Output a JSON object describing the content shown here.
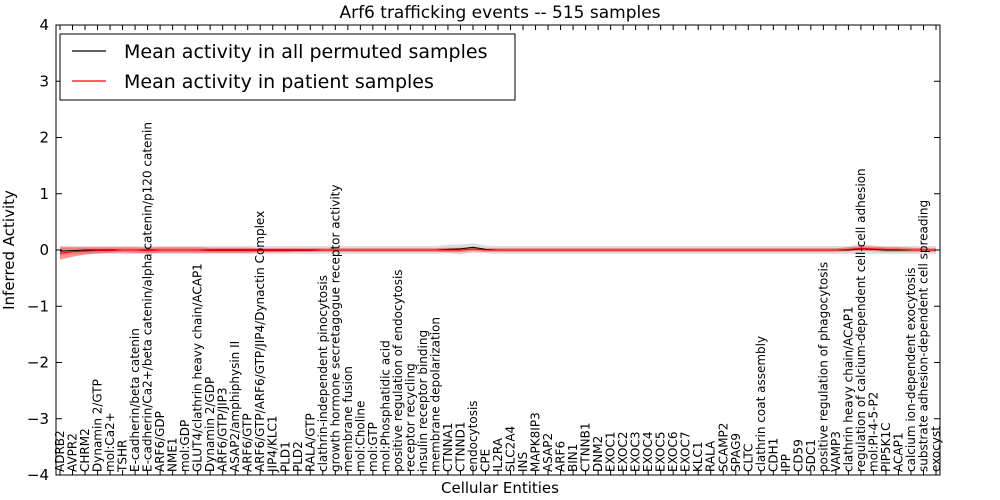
{
  "chart_data": {
    "type": "line",
    "title": "Arf6 trafficking events -- 515 samples",
    "xlabel": "Cellular Entities",
    "ylabel": "Inferred Activity",
    "ylim": [
      -4,
      4
    ],
    "yticks": [
      "4",
      "3",
      "2",
      "1",
      "0",
      "−1",
      "−2",
      "−3",
      "−4"
    ],
    "ytick_values": [
      4,
      3,
      2,
      1,
      0,
      -1,
      -2,
      -3,
      -4
    ],
    "legend": {
      "position": "top-left",
      "entries": [
        {
          "label": "Mean activity in all permuted samples",
          "color": "#000000"
        },
        {
          "label": "Mean activity in patient samples",
          "color": "#ff0000"
        }
      ]
    },
    "categories": [
      "ADRB2",
      "AVPR2",
      "CHRM2",
      "Dynamin 2/GTP",
      "mol:Ca2+",
      "TSHR",
      "E-cadherin/beta catenin",
      "E-cadherin/Ca2+/beta catenin/alpha catenin/p120 catenin",
      "ARF6/GDP",
      "NME1",
      "mol:GDP",
      "GLUT4/clathrin heavy chain/ACAP1",
      "Dynamin 2/GDP",
      "ARF6/GTP/JIP3",
      "ASAP2/amphiphysin II",
      "ARF6/GTP",
      "ARF6/GTP/ARF6/GTP/JIP4/Dynactin Complex",
      "JIP4/KLC1",
      "PLD1",
      "PLD2",
      "RALA/GTP",
      "clathrin-independent pinocytosis",
      "growth hormone secretagogue receptor activity",
      "membrane fusion",
      "mol:Choline",
      "mol:GTP",
      "mol:Phosphatidic acid",
      "positive regulation of endocytosis",
      "receptor recycling",
      "insulin receptor binding",
      "membrane depolarization",
      "CTNNA1",
      "CTNND1",
      "endocytosis",
      "CPE",
      "IL2RA",
      "SLC2A4",
      "INS",
      "MAPK8IP3",
      "ASAP2",
      "ARF6",
      "BIN1",
      "CTNNB1",
      "DNM2",
      "EXOC1",
      "EXOC2",
      "EXOC3",
      "EXOC4",
      "EXOC5",
      "EXOC6",
      "EXOC7",
      "KLC1",
      "RALA",
      "SCAMP2",
      "SPAG9",
      "CLTC",
      "clathrin coat assembly",
      "CDH1",
      "IPP",
      "CD59",
      "SDC1",
      "positive regulation of phagocytosis",
      "VAMP3",
      "clathrin heavy chain/ACAP1",
      "regulation of calcium-dependent cell-cell adhesion",
      "mol:PI-4-5-P2",
      "PIP5K1C",
      "ACAP1",
      "calcium ion-dependent exocytosis",
      "substrate adhesion-dependent cell spreading",
      "exocyst"
    ],
    "series": [
      {
        "name": "Mean activity in all permuted samples",
        "values": [
          -0.02,
          -0.01,
          0.0,
          0.0,
          0.0,
          0.0,
          0.0,
          0.0,
          0.0,
          0.0,
          0.0,
          0.0,
          0.0,
          0.0,
          0.0,
          0.0,
          0.0,
          0.0,
          0.0,
          0.0,
          0.0,
          0.0,
          0.0,
          0.0,
          0.0,
          0.0,
          0.0,
          0.0,
          0.0,
          0.0,
          0.0,
          0.01,
          0.02,
          0.05,
          0.01,
          0.0,
          0.0,
          0.0,
          0.0,
          0.0,
          0.0,
          0.0,
          0.0,
          0.0,
          0.0,
          0.0,
          0.0,
          0.0,
          0.0,
          0.0,
          0.0,
          0.0,
          0.0,
          0.0,
          0.0,
          0.0,
          0.0,
          0.0,
          0.0,
          0.0,
          0.0,
          0.0,
          0.0,
          0.0,
          0.02,
          0.01,
          0.0,
          0.0,
          0.0,
          0.0,
          0.0
        ],
        "lower": [
          -0.1,
          -0.08,
          -0.07,
          -0.07,
          -0.07,
          -0.07,
          -0.07,
          -0.07,
          -0.07,
          -0.07,
          -0.07,
          -0.07,
          -0.07,
          -0.07,
          -0.07,
          -0.07,
          -0.07,
          -0.07,
          -0.07,
          -0.07,
          -0.07,
          -0.07,
          -0.07,
          -0.07,
          -0.07,
          -0.07,
          -0.07,
          -0.07,
          -0.07,
          -0.07,
          -0.07,
          -0.06,
          -0.08,
          -0.05,
          -0.06,
          -0.07,
          -0.07,
          -0.07,
          -0.07,
          -0.07,
          -0.07,
          -0.07,
          -0.07,
          -0.07,
          -0.07,
          -0.07,
          -0.07,
          -0.07,
          -0.07,
          -0.07,
          -0.07,
          -0.07,
          -0.07,
          -0.07,
          -0.07,
          -0.07,
          -0.07,
          -0.07,
          -0.07,
          -0.07,
          -0.07,
          -0.07,
          -0.07,
          -0.07,
          -0.06,
          -0.07,
          -0.07,
          -0.07,
          -0.07,
          -0.07,
          -0.07
        ],
        "upper": [
          0.08,
          0.07,
          0.07,
          0.07,
          0.07,
          0.07,
          0.07,
          0.07,
          0.07,
          0.07,
          0.07,
          0.07,
          0.07,
          0.07,
          0.07,
          0.07,
          0.07,
          0.07,
          0.07,
          0.07,
          0.07,
          0.07,
          0.07,
          0.07,
          0.07,
          0.07,
          0.07,
          0.07,
          0.07,
          0.07,
          0.07,
          0.09,
          0.1,
          0.12,
          0.08,
          0.07,
          0.07,
          0.07,
          0.07,
          0.07,
          0.07,
          0.07,
          0.07,
          0.07,
          0.07,
          0.07,
          0.07,
          0.07,
          0.07,
          0.07,
          0.07,
          0.07,
          0.07,
          0.07,
          0.07,
          0.07,
          0.07,
          0.07,
          0.07,
          0.07,
          0.07,
          0.07,
          0.07,
          0.07,
          0.1,
          0.08,
          0.07,
          0.07,
          0.07,
          0.07,
          0.07
        ]
      },
      {
        "name": "Mean activity in patient samples",
        "values": [
          -0.06,
          -0.03,
          -0.02,
          -0.01,
          -0.01,
          0.0,
          0.0,
          -0.01,
          0.0,
          0.0,
          0.0,
          0.0,
          -0.01,
          -0.01,
          -0.01,
          -0.01,
          -0.01,
          -0.01,
          -0.01,
          -0.01,
          -0.01,
          0.0,
          0.0,
          0.0,
          0.0,
          0.0,
          0.0,
          0.0,
          0.0,
          0.0,
          0.0,
          0.0,
          0.0,
          0.02,
          0.0,
          0.0,
          0.0,
          0.0,
          0.0,
          0.0,
          0.0,
          0.0,
          0.0,
          0.0,
          0.0,
          0.0,
          0.0,
          0.0,
          0.0,
          0.0,
          0.0,
          0.0,
          0.0,
          0.0,
          0.0,
          0.0,
          0.0,
          0.0,
          0.0,
          0.0,
          0.0,
          0.0,
          0.0,
          0.01,
          0.03,
          0.02,
          0.01,
          0.01,
          0.0,
          0.0,
          0.0
        ],
        "lower": [
          -0.17,
          -0.12,
          -0.08,
          -0.06,
          -0.05,
          -0.04,
          -0.05,
          -0.06,
          -0.05,
          -0.05,
          -0.05,
          -0.05,
          -0.05,
          -0.05,
          -0.05,
          -0.05,
          -0.04,
          -0.04,
          -0.04,
          -0.03,
          -0.03,
          -0.03,
          -0.03,
          -0.03,
          -0.03,
          -0.03,
          -0.03,
          -0.03,
          -0.03,
          -0.03,
          -0.03,
          -0.04,
          -0.04,
          -0.02,
          -0.03,
          -0.03,
          -0.03,
          -0.03,
          -0.03,
          -0.03,
          -0.03,
          -0.03,
          -0.03,
          -0.03,
          -0.03,
          -0.03,
          -0.03,
          -0.03,
          -0.03,
          -0.03,
          -0.03,
          -0.03,
          -0.03,
          -0.03,
          -0.03,
          -0.03,
          -0.03,
          -0.03,
          -0.03,
          -0.03,
          -0.03,
          -0.03,
          -0.03,
          -0.02,
          -0.01,
          -0.02,
          -0.03,
          -0.03,
          -0.03,
          -0.03,
          -0.03
        ],
        "upper": [
          0.05,
          0.05,
          0.05,
          0.05,
          0.05,
          0.05,
          0.05,
          0.04,
          0.05,
          0.05,
          0.05,
          0.05,
          0.04,
          0.04,
          0.04,
          0.04,
          0.03,
          0.03,
          0.03,
          0.03,
          0.03,
          0.03,
          0.03,
          0.03,
          0.03,
          0.03,
          0.03,
          0.03,
          0.03,
          0.03,
          0.03,
          0.04,
          0.04,
          0.05,
          0.03,
          0.03,
          0.03,
          0.03,
          0.03,
          0.03,
          0.03,
          0.03,
          0.03,
          0.03,
          0.03,
          0.03,
          0.03,
          0.03,
          0.03,
          0.03,
          0.03,
          0.03,
          0.03,
          0.03,
          0.03,
          0.03,
          0.03,
          0.03,
          0.03,
          0.03,
          0.03,
          0.03,
          0.03,
          0.05,
          0.07,
          0.06,
          0.05,
          0.05,
          0.04,
          0.03,
          0.03
        ]
      }
    ]
  }
}
